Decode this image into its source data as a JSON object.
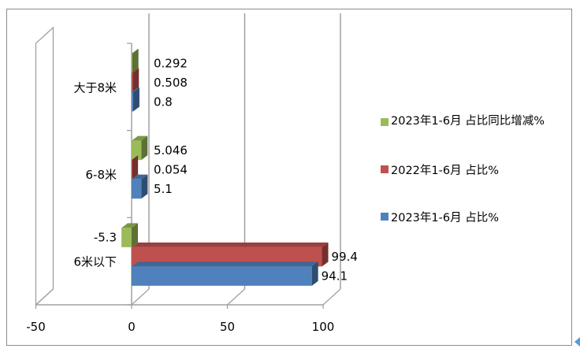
{
  "chart_data": {
    "type": "bar",
    "orientation": "horizontal",
    "style": "3d-clustered",
    "categories": [
      "6米以下",
      "6-8米",
      "大于8米"
    ],
    "series": [
      {
        "name": "2023年1-6月占比%",
        "color": "#4f81bd",
        "values": [
          94.1,
          5.1,
          0.8
        ]
      },
      {
        "name": "2022年1-6月占比%",
        "color": "#c0504d",
        "values": [
          99.4,
          0.054,
          0.508
        ]
      },
      {
        "name": "2023年1-6月占比同比增减%",
        "color": "#9bbb59",
        "values": [
          -5.3,
          5.046,
          0.292
        ]
      }
    ],
    "data_labels": [
      [
        "94.1",
        "5.1",
        "0.8"
      ],
      [
        "99.4",
        "0.054",
        "0.508"
      ],
      [
        "-5.3",
        "5.046",
        "0.292"
      ]
    ],
    "xlim": [
      -50,
      100
    ],
    "xticks": [
      "-50",
      "0",
      "50",
      "100"
    ],
    "grid": true,
    "legend_position": "right"
  },
  "legend": {
    "items": [
      {
        "label": "2023年1-6月 占比同比增减%",
        "color": "#9bbb59"
      },
      {
        "label": "2022年1-6月 占比%",
        "color": "#c0504d"
      },
      {
        "label": "2023年1-6月 占比%",
        "color": "#4f81bd"
      }
    ]
  }
}
